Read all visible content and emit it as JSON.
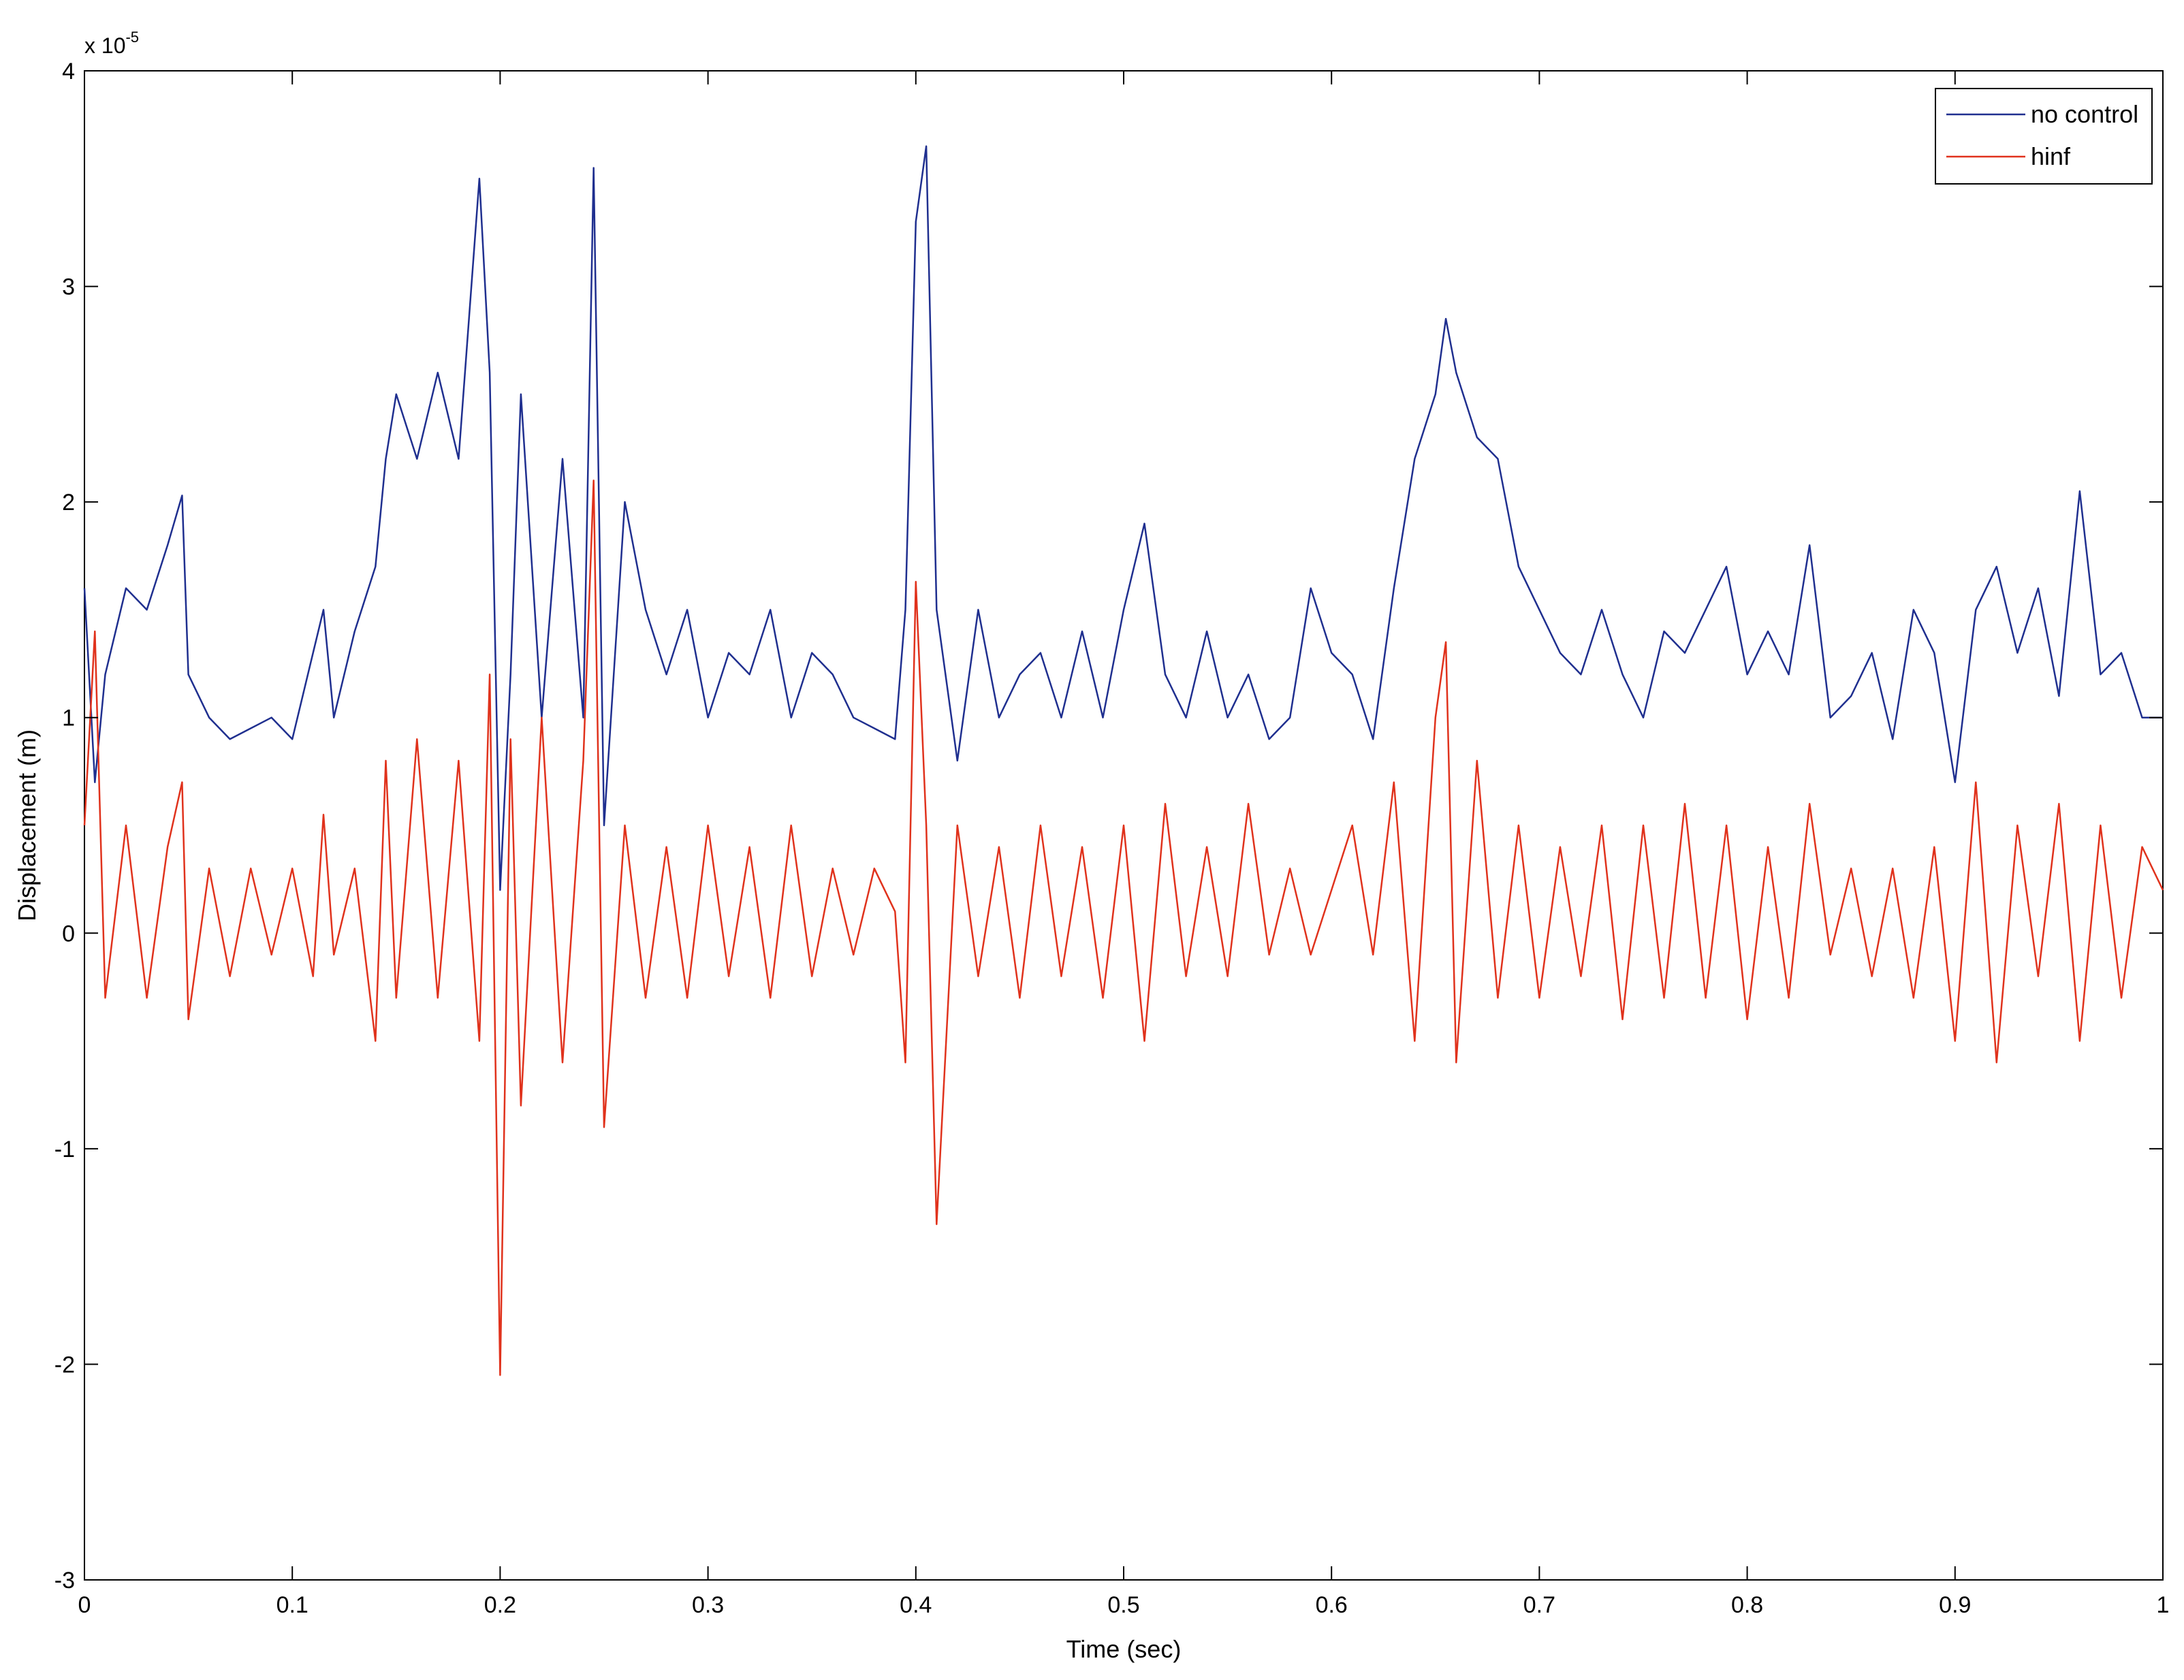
{
  "chart_data": {
    "type": "line",
    "title": "",
    "xlabel": "Time (sec)",
    "ylabel": "Displacement (m)",
    "xlim": [
      0,
      1
    ],
    "ylim": [
      -3,
      4
    ],
    "y_multiplier": "x 10",
    "y_exponent": "-5",
    "xticks": [
      "0",
      "0.1",
      "0.2",
      "0.3",
      "0.4",
      "0.5",
      "0.6",
      "0.7",
      "0.8",
      "0.9",
      "1"
    ],
    "yticks": [
      "-3",
      "-2",
      "-1",
      "0",
      "1",
      "2",
      "3",
      "4"
    ],
    "grid": false,
    "legend_position": "top-right",
    "series": [
      {
        "name": "no control",
        "color": "#1f2f8f",
        "x": [
          0,
          0.005,
          0.01,
          0.02,
          0.03,
          0.04,
          0.047,
          0.05,
          0.06,
          0.07,
          0.08,
          0.09,
          0.1,
          0.11,
          0.115,
          0.12,
          0.13,
          0.14,
          0.145,
          0.15,
          0.16,
          0.17,
          0.18,
          0.19,
          0.195,
          0.2,
          0.205,
          0.21,
          0.22,
          0.23,
          0.24,
          0.245,
          0.25,
          0.26,
          0.27,
          0.28,
          0.29,
          0.3,
          0.31,
          0.32,
          0.33,
          0.34,
          0.35,
          0.36,
          0.37,
          0.38,
          0.39,
          0.395,
          0.4,
          0.405,
          0.41,
          0.42,
          0.43,
          0.44,
          0.45,
          0.46,
          0.47,
          0.48,
          0.49,
          0.5,
          0.51,
          0.52,
          0.53,
          0.54,
          0.55,
          0.56,
          0.57,
          0.58,
          0.59,
          0.6,
          0.61,
          0.62,
          0.63,
          0.64,
          0.65,
          0.655,
          0.66,
          0.67,
          0.68,
          0.69,
          0.7,
          0.71,
          0.72,
          0.73,
          0.74,
          0.75,
          0.76,
          0.77,
          0.78,
          0.79,
          0.8,
          0.81,
          0.82,
          0.83,
          0.84,
          0.85,
          0.86,
          0.87,
          0.88,
          0.89,
          0.9,
          0.91,
          0.92,
          0.93,
          0.94,
          0.95,
          0.96,
          0.97,
          0.98,
          0.99,
          1.0
        ],
        "y": [
          1.6,
          0.7,
          1.2,
          1.6,
          1.5,
          1.8,
          2.03,
          1.2,
          1.0,
          0.9,
          0.95,
          1.0,
          0.9,
          1.3,
          1.5,
          1.0,
          1.4,
          1.7,
          2.2,
          2.5,
          2.2,
          2.6,
          2.2,
          3.5,
          2.6,
          0.2,
          1.2,
          2.5,
          1.0,
          2.2,
          1.0,
          3.55,
          0.5,
          2.0,
          1.5,
          1.2,
          1.5,
          1.0,
          1.3,
          1.2,
          1.5,
          1.0,
          1.3,
          1.2,
          1.0,
          0.95,
          0.9,
          1.5,
          3.3,
          3.65,
          1.5,
          0.8,
          1.5,
          1.0,
          1.2,
          1.3,
          1.0,
          1.4,
          1.0,
          1.5,
          1.9,
          1.2,
          1.0,
          1.4,
          1.0,
          1.2,
          0.9,
          1.0,
          1.6,
          1.3,
          1.2,
          0.9,
          1.6,
          2.2,
          2.5,
          2.85,
          2.6,
          2.3,
          2.2,
          1.7,
          1.5,
          1.3,
          1.2,
          1.5,
          1.2,
          1.0,
          1.4,
          1.3,
          1.5,
          1.7,
          1.2,
          1.4,
          1.2,
          1.8,
          1.0,
          1.1,
          1.3,
          0.9,
          1.5,
          1.3,
          0.7,
          1.5,
          1.7,
          1.3,
          1.6,
          1.1,
          2.05,
          1.2,
          1.3,
          1.0,
          1.0
        ]
      },
      {
        "name": "hinf",
        "color": "#e0321c",
        "x": [
          0,
          0.005,
          0.01,
          0.02,
          0.03,
          0.04,
          0.047,
          0.05,
          0.06,
          0.07,
          0.08,
          0.09,
          0.1,
          0.11,
          0.115,
          0.12,
          0.13,
          0.14,
          0.145,
          0.15,
          0.16,
          0.17,
          0.18,
          0.19,
          0.195,
          0.2,
          0.205,
          0.21,
          0.22,
          0.23,
          0.24,
          0.245,
          0.25,
          0.26,
          0.27,
          0.28,
          0.29,
          0.3,
          0.31,
          0.32,
          0.33,
          0.34,
          0.35,
          0.36,
          0.37,
          0.38,
          0.39,
          0.395,
          0.4,
          0.405,
          0.41,
          0.42,
          0.43,
          0.44,
          0.45,
          0.46,
          0.47,
          0.48,
          0.49,
          0.5,
          0.51,
          0.52,
          0.53,
          0.54,
          0.55,
          0.56,
          0.57,
          0.58,
          0.59,
          0.6,
          0.61,
          0.62,
          0.63,
          0.64,
          0.65,
          0.655,
          0.66,
          0.67,
          0.68,
          0.69,
          0.7,
          0.71,
          0.72,
          0.73,
          0.74,
          0.75,
          0.76,
          0.77,
          0.78,
          0.79,
          0.8,
          0.81,
          0.82,
          0.83,
          0.84,
          0.85,
          0.86,
          0.87,
          0.88,
          0.89,
          0.9,
          0.91,
          0.92,
          0.93,
          0.94,
          0.95,
          0.96,
          0.97,
          0.98,
          0.99,
          1.0
        ],
        "y": [
          0.5,
          1.4,
          -0.3,
          0.5,
          -0.3,
          0.4,
          0.7,
          -0.4,
          0.3,
          -0.2,
          0.3,
          -0.1,
          0.3,
          -0.2,
          0.55,
          -0.1,
          0.3,
          -0.5,
          0.8,
          -0.3,
          0.9,
          -0.3,
          0.8,
          -0.5,
          1.2,
          -2.05,
          0.9,
          -0.8,
          1.0,
          -0.6,
          0.8,
          2.1,
          -0.9,
          0.5,
          -0.3,
          0.4,
          -0.3,
          0.5,
          -0.2,
          0.4,
          -0.3,
          0.5,
          -0.2,
          0.3,
          -0.1,
          0.3,
          0.1,
          -0.6,
          1.63,
          0.5,
          -1.35,
          0.5,
          -0.2,
          0.4,
          -0.3,
          0.5,
          -0.2,
          0.4,
          -0.3,
          0.5,
          -0.5,
          0.6,
          -0.2,
          0.4,
          -0.2,
          0.6,
          -0.1,
          0.3,
          -0.1,
          0.2,
          0.5,
          -0.1,
          0.7,
          -0.5,
          1.0,
          1.35,
          -0.6,
          0.8,
          -0.3,
          0.5,
          -0.3,
          0.4,
          -0.2,
          0.5,
          -0.4,
          0.5,
          -0.3,
          0.6,
          -0.3,
          0.5,
          -0.4,
          0.4,
          -0.3,
          0.6,
          -0.1,
          0.3,
          -0.2,
          0.3,
          -0.3,
          0.4,
          -0.5,
          0.7,
          -0.6,
          0.5,
          -0.2,
          0.6,
          -0.5,
          0.5,
          -0.3,
          0.4,
          0.2
        ]
      }
    ]
  }
}
